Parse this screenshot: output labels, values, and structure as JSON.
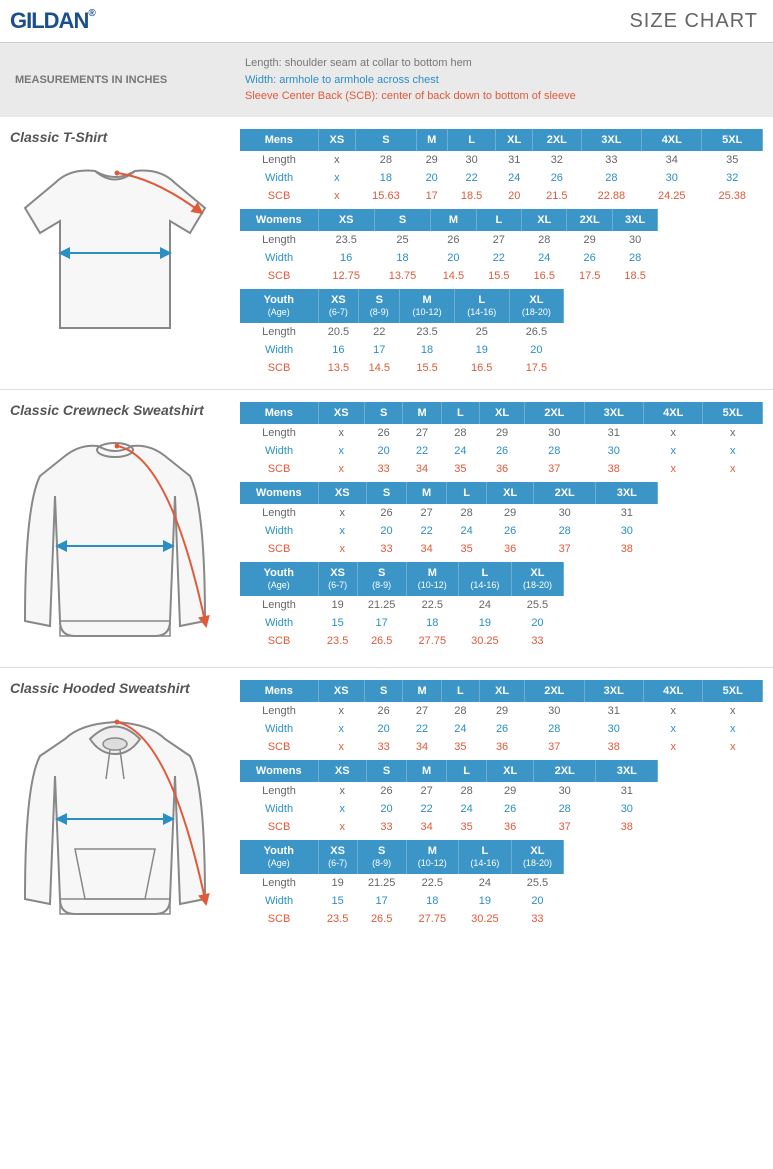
{
  "brand": "GILDAN",
  "page_title": "SIZE CHART",
  "measurements_label": "MEASUREMENTS IN INCHES",
  "definitions": {
    "length": "Length:  shoulder seam at collar to bottom hem",
    "width": "Width: armhole to armhole across chest",
    "scb": "Sleeve Center Back (SCB): center of back down to bottom of sleeve"
  },
  "colors": {
    "header_blue": "#3b95c7",
    "width_blue": "#2b8fc5",
    "scb_red": "#e05a3a",
    "text_gray": "#666",
    "logo_blue": "#1a4f8f"
  },
  "row_labels": {
    "length": "Length",
    "width": "Width",
    "scb": "SCB"
  },
  "size_headers": {
    "mens": [
      "Mens",
      "XS",
      "S",
      "M",
      "L",
      "XL",
      "2XL",
      "3XL",
      "4XL",
      "5XL"
    ],
    "womens": [
      "Womens",
      "XS",
      "S",
      "M",
      "L",
      "XL",
      "2XL",
      "3XL"
    ],
    "youth_top": [
      "Youth",
      "XS",
      "S",
      "M",
      "L",
      "XL"
    ],
    "youth_age": [
      "(Age)",
      "(6-7)",
      "(8-9)",
      "(10-12)",
      "(14-16)",
      "(18-20)"
    ]
  },
  "products": [
    {
      "name": "Classic T-Shirt",
      "diagram": "tshirt",
      "tables": [
        {
          "header": "mens",
          "rows": {
            "length": [
              "x",
              "28",
              "29",
              "30",
              "31",
              "32",
              "33",
              "34",
              "35"
            ],
            "width": [
              "x",
              "18",
              "20",
              "22",
              "24",
              "26",
              "28",
              "30",
              "32"
            ],
            "scb": [
              "x",
              "15.63",
              "17",
              "18.5",
              "20",
              "21.5",
              "22.88",
              "24.25",
              "25.38"
            ]
          }
        },
        {
          "header": "womens",
          "rows": {
            "length": [
              "23.5",
              "25",
              "26",
              "27",
              "28",
              "29",
              "30"
            ],
            "width": [
              "16",
              "18",
              "20",
              "22",
              "24",
              "26",
              "28"
            ],
            "scb": [
              "12.75",
              "13.75",
              "14.5",
              "15.5",
              "16.5",
              "17.5",
              "18.5"
            ]
          }
        },
        {
          "header": "youth",
          "rows": {
            "length": [
              "20.5",
              "22",
              "23.5",
              "25",
              "26.5"
            ],
            "width": [
              "16",
              "17",
              "18",
              "19",
              "20"
            ],
            "scb": [
              "13.5",
              "14.5",
              "15.5",
              "16.5",
              "17.5"
            ]
          }
        }
      ]
    },
    {
      "name": "Classic Crewneck Sweatshirt",
      "diagram": "crewneck",
      "tables": [
        {
          "header": "mens",
          "rows": {
            "length": [
              "x",
              "26",
              "27",
              "28",
              "29",
              "30",
              "31",
              "x",
              "x"
            ],
            "width": [
              "x",
              "20",
              "22",
              "24",
              "26",
              "28",
              "30",
              "x",
              "x"
            ],
            "scb": [
              "x",
              "33",
              "34",
              "35",
              "36",
              "37",
              "38",
              "x",
              "x"
            ]
          }
        },
        {
          "header": "womens",
          "rows": {
            "length": [
              "x",
              "26",
              "27",
              "28",
              "29",
              "30",
              "31"
            ],
            "width": [
              "x",
              "20",
              "22",
              "24",
              "26",
              "28",
              "30"
            ],
            "scb": [
              "x",
              "33",
              "34",
              "35",
              "36",
              "37",
              "38"
            ]
          }
        },
        {
          "header": "youth",
          "rows": {
            "length": [
              "19",
              "21.25",
              "22.5",
              "24",
              "25.5"
            ],
            "width": [
              "15",
              "17",
              "18",
              "19",
              "20"
            ],
            "scb": [
              "23.5",
              "26.5",
              "27.75",
              "30.25",
              "33"
            ]
          }
        }
      ]
    },
    {
      "name": "Classic Hooded Sweatshirt",
      "diagram": "hoodie",
      "tables": [
        {
          "header": "mens",
          "rows": {
            "length": [
              "x",
              "26",
              "27",
              "28",
              "29",
              "30",
              "31",
              "x",
              "x"
            ],
            "width": [
              "x",
              "20",
              "22",
              "24",
              "26",
              "28",
              "30",
              "x",
              "x"
            ],
            "scb": [
              "x",
              "33",
              "34",
              "35",
              "36",
              "37",
              "38",
              "x",
              "x"
            ]
          }
        },
        {
          "header": "womens",
          "rows": {
            "length": [
              "x",
              "26",
              "27",
              "28",
              "29",
              "30",
              "31"
            ],
            "width": [
              "x",
              "20",
              "22",
              "24",
              "26",
              "28",
              "30"
            ],
            "scb": [
              "x",
              "33",
              "34",
              "35",
              "36",
              "37",
              "38"
            ]
          }
        },
        {
          "header": "youth",
          "rows": {
            "length": [
              "19",
              "21.25",
              "22.5",
              "24",
              "25.5"
            ],
            "width": [
              "15",
              "17",
              "18",
              "19",
              "20"
            ],
            "scb": [
              "23.5",
              "26.5",
              "27.75",
              "30.25",
              "33"
            ]
          }
        }
      ]
    }
  ]
}
